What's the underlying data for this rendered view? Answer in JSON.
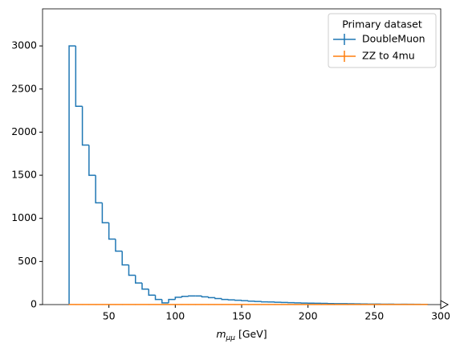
{
  "chart_data": {
    "type": "histogram",
    "xlabel": "m",
    "xlabel_subscript": "μμ",
    "xlabel_unit": "[GeV]",
    "legend_title": "Primary dataset",
    "legend": "upper right",
    "bins": [
      20,
      25,
      30,
      35,
      40,
      45,
      50,
      55,
      60,
      65,
      70,
      75,
      80,
      85,
      90,
      95,
      100,
      105,
      110,
      115,
      120,
      125,
      130,
      135,
      140,
      145,
      150,
      155,
      160,
      165,
      170,
      175,
      180,
      185,
      190,
      195,
      200,
      205,
      210,
      215,
      220,
      225,
      230,
      235,
      240,
      245,
      250,
      255,
      260,
      265,
      270,
      275,
      280,
      285,
      290
    ],
    "series": [
      {
        "name": "DoubleMuon",
        "color": "#1f77b4",
        "values": [
          3000,
          2300,
          1850,
          1500,
          1180,
          950,
          760,
          620,
          460,
          340,
          250,
          180,
          110,
          60,
          20,
          60,
          85,
          95,
          100,
          100,
          90,
          80,
          70,
          60,
          55,
          50,
          45,
          40,
          36,
          32,
          30,
          27,
          25,
          22,
          20,
          18,
          16,
          15,
          14,
          12,
          11,
          10,
          9,
          8,
          7,
          6,
          6,
          5,
          5,
          4,
          4,
          3,
          3,
          2
        ]
      },
      {
        "name": "ZZ to 4mu",
        "color": "#ff7f0e",
        "values": [
          1,
          1,
          1,
          1,
          1,
          1,
          1,
          1,
          1,
          1,
          1,
          1,
          1,
          1,
          1,
          1,
          1,
          1,
          1,
          1,
          1,
          1,
          1,
          1,
          1,
          1,
          1,
          1,
          1,
          1,
          1,
          1,
          1,
          1,
          1,
          1,
          1,
          1,
          1,
          1,
          1,
          1,
          1,
          1,
          1,
          1,
          1,
          1,
          1,
          1,
          1,
          1,
          1,
          1
        ]
      }
    ],
    "xlim": [
      0,
      300
    ],
    "ylim": [
      0,
      3430
    ],
    "xticks": [
      50,
      100,
      150,
      200,
      250,
      300
    ],
    "yticks": [
      0,
      500,
      1000,
      1500,
      2000,
      2500,
      3000
    ]
  }
}
